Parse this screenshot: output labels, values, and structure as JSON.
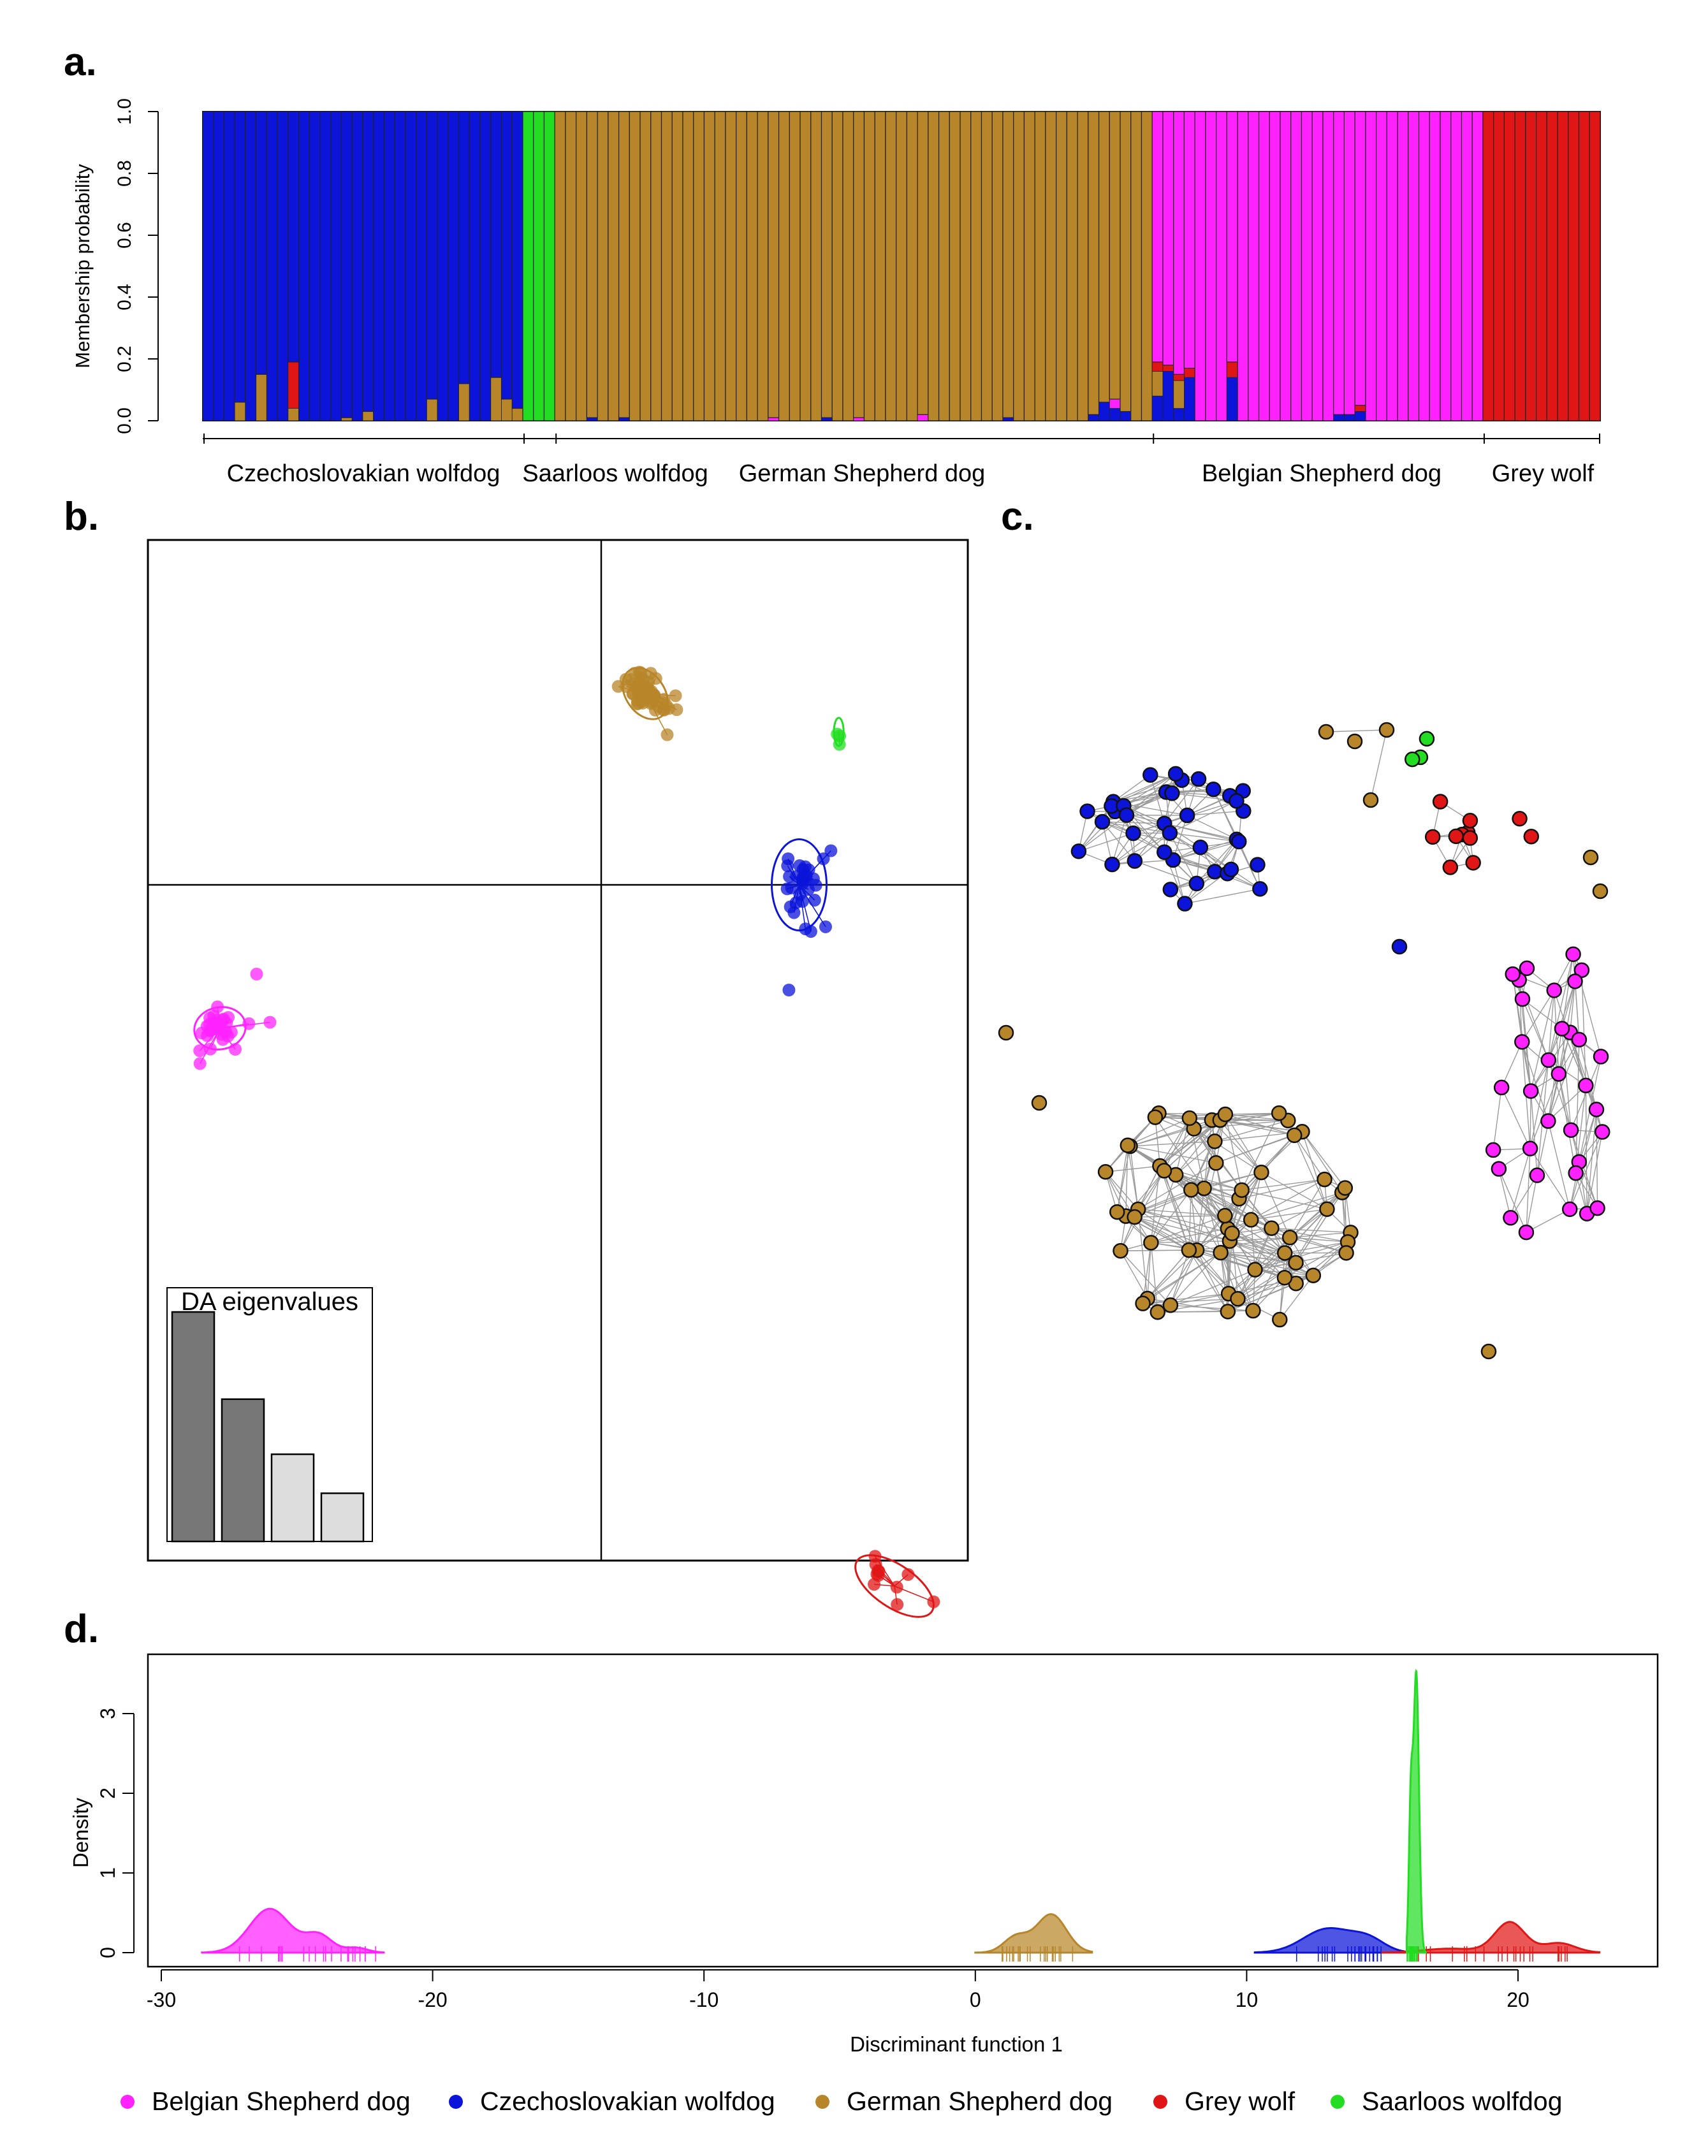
{
  "panel_labels": {
    "a": "a.",
    "b": "b.",
    "c": "c.",
    "d": "d."
  },
  "colors": {
    "Belgian Shepherd dog": "#ff22ff",
    "Czechoslovakian wolfdog": "#0b14d8",
    "German Shepherd dog": "#b8862a",
    "Grey wolf": "#e01616",
    "Saarloos wolfdog": "#22dd22"
  },
  "chart_data": [
    {
      "panel": "a",
      "type": "bar",
      "stacked": true,
      "ylabel": "Membership probability",
      "ylim": [
        0,
        1
      ],
      "yticks": [
        "0.0",
        "0.2",
        "0.4",
        "0.6",
        "0.8",
        "1.0"
      ],
      "groups": [
        {
          "label": "Czechoslovakian wolfdog",
          "n": 30,
          "main": "Czechoslovakian wolfdog",
          "admix": {
            "3": {
              "German Shepherd dog": 0.06
            },
            "5": {
              "German Shepherd dog": 0.15
            },
            "8": {
              "Grey wolf": 0.15
            },
            "8b": {
              "German Shepherd dog": 0.04
            },
            "13": {
              "German Shepherd dog": 0.01
            },
            "15": {
              "German Shepherd dog": 0.03
            },
            "21": {
              "German Shepherd dog": 0.07
            },
            "24": {
              "German Shepherd dog": 0.12
            },
            "27": {
              "German Shepherd dog": 0.14
            },
            "28": {
              "German Shepherd dog": 0.07
            },
            "29": {
              "German Shepherd dog": 0.04
            }
          }
        },
        {
          "label": "Saarloos wolfdog",
          "n": 3,
          "main": "Saarloos wolfdog",
          "admix": {}
        },
        {
          "label": "German Shepherd dog",
          "n": 56,
          "main": "German Shepherd dog",
          "admix": {
            "3": {
              "Czechoslovakian wolfdog": 0.01
            },
            "6": {
              "Czechoslovakian wolfdog": 0.01
            },
            "20": {
              "Belgian Shepherd dog": 0.01
            },
            "25": {
              "Czechoslovakian wolfdog": 0.01
            },
            "28": {
              "Belgian Shepherd dog": 0.01
            },
            "34": {
              "Belgian Shepherd dog": 0.02
            },
            "42": {
              "Czechoslovakian wolfdog": 0.01
            },
            "50": {
              "Czechoslovakian wolfdog": 0.02
            },
            "51": {
              "Czechoslovakian wolfdog": 0.06
            },
            "52": {
              "Czechoslovakian wolfdog": 0.04,
              "Belgian Shepherd dog": 0.03
            },
            "53": {
              "Czechoslovakian wolfdog": 0.03
            }
          }
        },
        {
          "label": "Belgian Shepherd dog",
          "n": 31,
          "main": "Belgian Shepherd dog",
          "admix": {
            "0": {
              "Czechoslovakian wolfdog": 0.08,
              "German Shepherd dog": 0.08,
              "Grey wolf": 0.03
            },
            "1": {
              "Czechoslovakian wolfdog": 0.16,
              "Grey wolf": 0.02
            },
            "2": {
              "German Shepherd dog": 0.09,
              "Czechoslovakian wolfdog": 0.04,
              "Grey wolf": 0.02
            },
            "3": {
              "Czechoslovakian wolfdog": 0.14,
              "Grey wolf": 0.03
            },
            "7": {
              "Czechoslovakian wolfdog": 0.14,
              "Grey wolf": 0.05
            },
            "17": {
              "Czechoslovakian wolfdog": 0.02
            },
            "18": {
              "Czechoslovakian wolfdog": 0.02
            },
            "19": {
              "Czechoslovakian wolfdog": 0.03,
              "Grey wolf": 0.02
            }
          }
        },
        {
          "label": "Grey wolf",
          "n": 11,
          "main": "Grey wolf",
          "admix": {}
        }
      ]
    },
    {
      "panel": "b",
      "type": "scatter",
      "inset_title": "DA eigenvalues",
      "eigenvalues": [
        100,
        62,
        38,
        21
      ],
      "clusters": [
        {
          "group": "Belgian Shepherd dog",
          "center": [
            -26,
            -4.5
          ],
          "spread": [
            1.6,
            0.6
          ],
          "n": 31,
          "angle": 0.2,
          "outliers": [
            [
              -23.5,
              -2.8
            ]
          ]
        },
        {
          "group": "German Shepherd dog",
          "center": [
            3,
            6.0
          ],
          "spread": [
            1.2,
            0.8
          ],
          "n": 56,
          "angle": 0.6,
          "outliers": []
        },
        {
          "group": "Czechoslovakian wolfdog",
          "center": [
            13.5,
            0.0
          ],
          "spread": [
            1.7,
            1.3
          ],
          "n": 30,
          "angle": 0.0,
          "outliers": [
            [
              12.8,
              -3.3
            ]
          ]
        },
        {
          "group": "Saarloos wolfdog",
          "center": [
            16.2,
            4.8
          ],
          "spread": [
            0.3,
            0.4
          ],
          "n": 3,
          "angle": 0.0,
          "outliers": []
        },
        {
          "group": "Grey wolf",
          "center": [
            20.0,
            -22.0
          ],
          "spread": [
            2.8,
            0.6
          ],
          "n": 11,
          "angle": -0.6,
          "outliers": []
        }
      ]
    },
    {
      "panel": "c",
      "type": "network",
      "clusters": [
        {
          "group": "Czechoslovakian wolfdog",
          "n": 38
        },
        {
          "group": "German Shepherd dog",
          "n": 62
        },
        {
          "group": "Belgian Shepherd dog",
          "n": 33
        },
        {
          "group": "Grey wolf",
          "n": 11
        },
        {
          "group": "Saarloos wolfdog",
          "n": 3
        }
      ]
    },
    {
      "panel": "d",
      "type": "area",
      "xlabel": "Discriminant function 1",
      "ylabel": "Density",
      "xlim": [
        -30,
        23
      ],
      "ylim": [
        0,
        3.6
      ],
      "xticks": [
        -30,
        -20,
        -10,
        0,
        10,
        20
      ],
      "yticks": [
        0,
        1,
        2,
        3
      ],
      "series": [
        {
          "name": "Belgian Shepherd dog",
          "range": [
            -28.5,
            -21.8
          ],
          "peaks": [
            [
              -26,
              0.55,
              0.75
            ],
            [
              -24.2,
              0.22,
              0.5
            ],
            [
              -22.8,
              0.06,
              0.4
            ]
          ]
        },
        {
          "name": "German Shepherd dog",
          "range": [
            0,
            4.3
          ],
          "peaks": [
            [
              2.8,
              0.48,
              0.55
            ],
            [
              1.5,
              0.2,
              0.45
            ]
          ]
        },
        {
          "name": "Czechoslovakian wolfdog",
          "range": [
            10.3,
            16.0
          ],
          "peaks": [
            [
              13,
              0.3,
              0.9
            ],
            [
              14.5,
              0.15,
              0.6
            ]
          ]
        },
        {
          "name": "Grey wolf",
          "range": [
            15.0,
            23.0
          ],
          "peaks": [
            [
              19.7,
              0.38,
              0.55
            ],
            [
              21.5,
              0.12,
              0.6
            ],
            [
              17.5,
              0.05,
              1.0
            ]
          ]
        },
        {
          "name": "Saarloos wolfdog",
          "range": [
            15.9,
            16.6
          ],
          "peaks": [
            [
              16.25,
              3.5,
              0.1
            ],
            [
              16.05,
              1.8,
              0.07
            ]
          ]
        }
      ],
      "legend": [
        "Belgian Shepherd dog",
        "Czechoslovakian wolfdog",
        "German Shepherd dog",
        "Grey wolf",
        "Saarloos wolfdog"
      ],
      "legend_position": "bottom"
    }
  ]
}
